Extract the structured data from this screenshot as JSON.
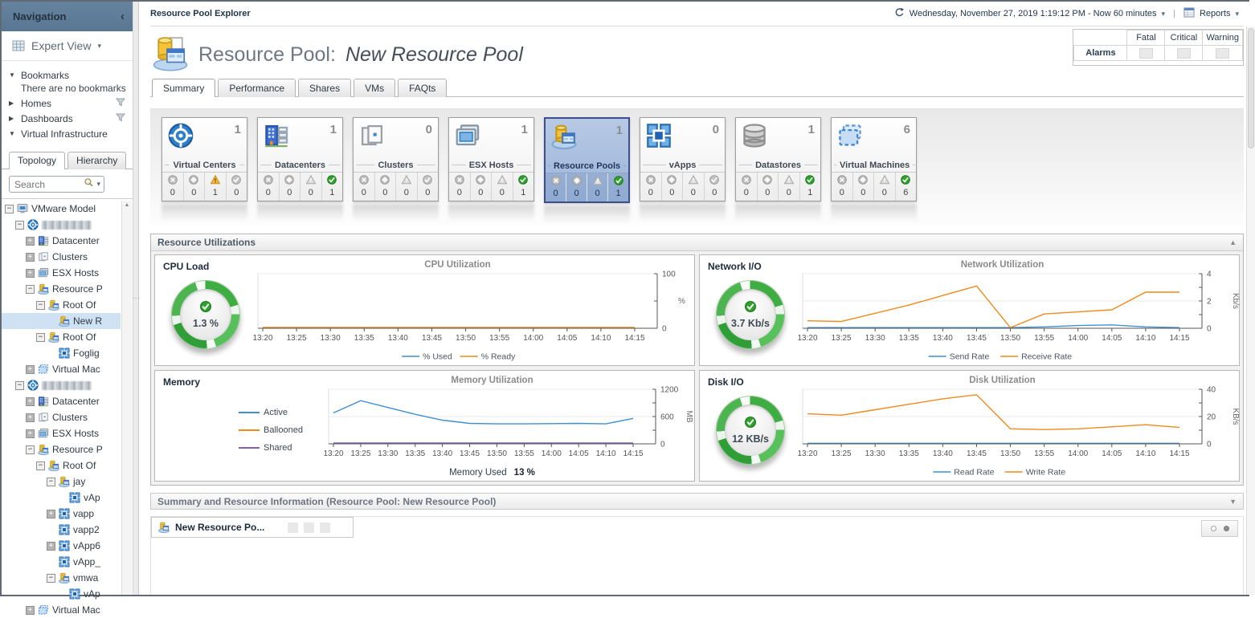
{
  "sidebar": {
    "title": "Navigation",
    "view_label": "Expert View",
    "bookmarks_label": "Bookmarks",
    "bookmarks_empty": "There are no bookmarks",
    "homes_label": "Homes",
    "dashboards_label": "Dashboards",
    "vi_label": "Virtual Infrastructure",
    "tree_tabs": [
      "Topology",
      "Hierarchy"
    ],
    "search_placeholder": "Search",
    "tree": [
      {
        "label": "VMware Model",
        "level": 0,
        "icon": "model",
        "exp": "minus"
      },
      {
        "label": "",
        "redacted": true,
        "level": 1,
        "icon": "vcenter",
        "exp": "minus"
      },
      {
        "label": "Datacenter",
        "level": 2,
        "icon": "datacenter",
        "exp": "plus"
      },
      {
        "label": "Clusters",
        "level": 2,
        "icon": "cluster",
        "exp": "plus"
      },
      {
        "label": "ESX Hosts",
        "level": 2,
        "icon": "host",
        "exp": "plus"
      },
      {
        "label": "Resource P",
        "level": 2,
        "icon": "rpool",
        "exp": "minus"
      },
      {
        "label": "Root Of",
        "level": 3,
        "icon": "rpool",
        "exp": "minus"
      },
      {
        "label": "New R",
        "level": 4,
        "icon": "rpool",
        "selected": true
      },
      {
        "label": "Root Of",
        "level": 3,
        "icon": "rpool",
        "exp": "minus"
      },
      {
        "label": "Foglig",
        "level": 4,
        "icon": "vapp"
      },
      {
        "label": "Virtual Mac",
        "level": 2,
        "icon": "vm",
        "exp": "plus"
      },
      {
        "label": "",
        "redacted": true,
        "level": 1,
        "icon": "vcenter",
        "exp": "minus"
      },
      {
        "label": "Datacenter",
        "level": 2,
        "icon": "datacenter",
        "exp": "plus"
      },
      {
        "label": "Clusters",
        "level": 2,
        "icon": "cluster",
        "exp": "plus"
      },
      {
        "label": "ESX Hosts",
        "level": 2,
        "icon": "host",
        "exp": "plus"
      },
      {
        "label": "Resource P",
        "level": 2,
        "icon": "rpool",
        "exp": "minus"
      },
      {
        "label": "Root Of",
        "level": 3,
        "icon": "rpool",
        "exp": "minus"
      },
      {
        "label": "jay",
        "level": 4,
        "icon": "rpool",
        "exp": "minus"
      },
      {
        "label": "vAp",
        "level": 5,
        "icon": "vapp"
      },
      {
        "label": "vapp",
        "level": 4,
        "icon": "vapp",
        "exp": "plus"
      },
      {
        "label": "vapp2",
        "level": 4,
        "icon": "vapp"
      },
      {
        "label": "vApp6",
        "level": 4,
        "icon": "vapp",
        "exp": "plus"
      },
      {
        "label": "vApp_",
        "level": 4,
        "icon": "vapp"
      },
      {
        "label": "vmwa",
        "level": 4,
        "icon": "rpool",
        "exp": "minus"
      },
      {
        "label": "vAp",
        "level": 5,
        "icon": "vapp"
      },
      {
        "label": "Virtual Mac",
        "level": 2,
        "icon": "vm",
        "exp": "plus"
      }
    ]
  },
  "topbar": {
    "explorer_label": "Resource Pool Explorer",
    "time_label": "Wednesday, November 27, 2019 1:19:12 PM - Now 60 minutes",
    "reports_label": "Reports"
  },
  "alarms": {
    "title": "Alarms",
    "columns": [
      "Fatal",
      "Critical",
      "Warning"
    ]
  },
  "header": {
    "title_prefix": "Resource Pool:",
    "title_name": "New Resource Pool"
  },
  "tabs": {
    "items": [
      "Summary",
      "Performance",
      "Shares",
      "VMs",
      "FAQts"
    ]
  },
  "tiles": [
    {
      "label": "Virtual Centers",
      "count": "1",
      "icon": "vcenter",
      "statuses": [
        {
          "k": "fatal",
          "n": "0",
          "on": false
        },
        {
          "k": "critical",
          "n": "0",
          "on": false
        },
        {
          "k": "warning",
          "n": "1",
          "on": true
        },
        {
          "k": "normal",
          "n": "0",
          "on": false
        }
      ]
    },
    {
      "label": "Datacenters",
      "count": "1",
      "icon": "datacenter",
      "statuses": [
        {
          "k": "fatal",
          "n": "0",
          "on": false
        },
        {
          "k": "critical",
          "n": "0",
          "on": false
        },
        {
          "k": "warning",
          "n": "0",
          "on": false
        },
        {
          "k": "normal",
          "n": "1",
          "on": true
        }
      ]
    },
    {
      "label": "Clusters",
      "count": "0",
      "icon": "cluster",
      "statuses": [
        {
          "k": "fatal",
          "n": "0",
          "on": false
        },
        {
          "k": "critical",
          "n": "0",
          "on": false
        },
        {
          "k": "warning",
          "n": "0",
          "on": false
        },
        {
          "k": "normal",
          "n": "0",
          "on": false
        }
      ]
    },
    {
      "label": "ESX Hosts",
      "count": "1",
      "icon": "host",
      "statuses": [
        {
          "k": "fatal",
          "n": "0",
          "on": false
        },
        {
          "k": "critical",
          "n": "0",
          "on": false
        },
        {
          "k": "warning",
          "n": "0",
          "on": false
        },
        {
          "k": "normal",
          "n": "1",
          "on": true
        }
      ]
    },
    {
      "label": "Resource Pools",
      "count": "1",
      "icon": "rpool",
      "selected": true,
      "statuses": [
        {
          "k": "fatal",
          "n": "0",
          "on": false
        },
        {
          "k": "critical",
          "n": "0",
          "on": false
        },
        {
          "k": "warning",
          "n": "0",
          "on": false
        },
        {
          "k": "normal",
          "n": "1",
          "on": true
        }
      ]
    },
    {
      "label": "vApps",
      "count": "0",
      "icon": "vapp",
      "statuses": [
        {
          "k": "fatal",
          "n": "0",
          "on": false
        },
        {
          "k": "critical",
          "n": "0",
          "on": false
        },
        {
          "k": "warning",
          "n": "0",
          "on": false
        },
        {
          "k": "normal",
          "n": "0",
          "on": false
        }
      ]
    },
    {
      "label": "Datastores",
      "count": "1",
      "icon": "datastore",
      "statuses": [
        {
          "k": "fatal",
          "n": "0",
          "on": false
        },
        {
          "k": "critical",
          "n": "0",
          "on": false
        },
        {
          "k": "warning",
          "n": "0",
          "on": false
        },
        {
          "k": "normal",
          "n": "1",
          "on": true
        }
      ]
    },
    {
      "label": "Virtual Machines",
      "count": "6",
      "icon": "vm",
      "statuses": [
        {
          "k": "fatal",
          "n": "0",
          "on": false
        },
        {
          "k": "critical",
          "n": "0",
          "on": false
        },
        {
          "k": "warning",
          "n": "0",
          "on": false
        },
        {
          "k": "normal",
          "n": "6",
          "on": true
        }
      ]
    }
  ],
  "sections": {
    "resource_utilizations": "Resource Utilizations",
    "summary_info": "Summary and Resource Information (Resource Pool: New Resource Pool)"
  },
  "quadrants": {
    "cpu": {
      "label": "CPU Load",
      "gauge": "1.3 %"
    },
    "network": {
      "label": "Network I/O",
      "gauge": "3.7 Kb/s"
    },
    "memory": {
      "label": "Memory"
    },
    "disk": {
      "label": "Disk I/O",
      "gauge": "12 KB/s"
    }
  },
  "chart_data": [
    {
      "type": "line",
      "title": "CPU Utilization",
      "categories": [
        "13:20",
        "13:25",
        "13:30",
        "13:35",
        "13:40",
        "13:45",
        "13:50",
        "13:55",
        "14:00",
        "14:05",
        "14:10",
        "14:15"
      ],
      "series": [
        {
          "name": "% Used",
          "color": "#3f8fd2",
          "values": [
            0.3,
            0.3,
            0.3,
            0.3,
            0.3,
            0.3,
            0.3,
            0.3,
            0.3,
            0.3,
            0.3,
            0.3
          ]
        },
        {
          "name": "% Ready",
          "color": "#ef8a1c",
          "values": [
            1.5,
            1.5,
            1.5,
            1.5,
            1.5,
            1.5,
            1.5,
            1.5,
            1.5,
            1.5,
            1.5,
            1.5
          ]
        }
      ],
      "ylim": [
        0,
        100
      ],
      "yticks": [
        {
          "v": 0,
          "label": "0"
        },
        {
          "v": 50,
          "label": ""
        },
        {
          "v": 100,
          "label": "100"
        }
      ],
      "unit": "%",
      "unit_rotate": false,
      "legend": "bottom"
    },
    {
      "type": "line",
      "title": "Network Utilization",
      "categories": [
        "13:20",
        "13:25",
        "13:30",
        "13:35",
        "13:40",
        "13:45",
        "13:50",
        "13:55",
        "14:00",
        "14:05",
        "14:10",
        "14:15"
      ],
      "series": [
        {
          "name": "Send Rate",
          "color": "#3f8fd2",
          "values": [
            0.05,
            0.05,
            0.05,
            0.05,
            0.05,
            0.05,
            0.05,
            0.1,
            0.2,
            0.25,
            0.1,
            0.05
          ]
        },
        {
          "name": "Receive Rate",
          "color": "#ef8a1c",
          "values": [
            0.55,
            0.5,
            1.1,
            1.7,
            2.4,
            3.1,
            0.05,
            1.05,
            1.2,
            1.35,
            2.65,
            2.65
          ]
        }
      ],
      "ylim": [
        0,
        4
      ],
      "yticks": [
        {
          "v": 0,
          "label": "0"
        },
        {
          "v": 1,
          "label": ""
        },
        {
          "v": 2,
          "label": "2"
        },
        {
          "v": 3,
          "label": ""
        },
        {
          "v": 4,
          "label": "4"
        }
      ],
      "unit": "Kb/s",
      "unit_rotate": true,
      "legend": "bottom"
    },
    {
      "type": "line",
      "title": "Memory Utilization",
      "categories": [
        "13:20",
        "13:25",
        "13:30",
        "13:35",
        "13:40",
        "13:45",
        "13:50",
        "13:55",
        "14:00",
        "14:05",
        "14:10",
        "14:15"
      ],
      "series": [
        {
          "name": "Active",
          "color": "#3f8fd2",
          "values": [
            680,
            950,
            800,
            650,
            520,
            450,
            440,
            440,
            445,
            450,
            440,
            560
          ]
        },
        {
          "name": "Ballooned",
          "color": "#ef8a1c",
          "values": [
            8,
            8,
            8,
            8,
            8,
            8,
            8,
            8,
            8,
            8,
            8,
            8
          ]
        },
        {
          "name": "Shared",
          "color": "#8a5db5",
          "values": [
            20,
            20,
            20,
            20,
            20,
            20,
            20,
            20,
            20,
            20,
            20,
            20
          ]
        }
      ],
      "ylim": [
        0,
        1200
      ],
      "yticks": [
        {
          "v": 0,
          "label": "0"
        },
        {
          "v": 300,
          "label": ""
        },
        {
          "v": 600,
          "label": "600"
        },
        {
          "v": 900,
          "label": ""
        },
        {
          "v": 1200,
          "label": "1200"
        }
      ],
      "unit": "MB",
      "unit_rotate": true,
      "legend": "left",
      "footer": {
        "label": "Memory Used",
        "value": "13 %"
      }
    },
    {
      "type": "line",
      "title": "Disk Utilization",
      "categories": [
        "13:20",
        "13:25",
        "13:30",
        "13:35",
        "13:40",
        "13:45",
        "13:50",
        "13:55",
        "14:00",
        "14:05",
        "14:10",
        "14:15"
      ],
      "series": [
        {
          "name": "Read Rate",
          "color": "#3f8fd2",
          "values": [
            0.4,
            0.4,
            0.4,
            0.4,
            0.4,
            0.4,
            0.4,
            0.4,
            0.4,
            0.4,
            0.4,
            0.4
          ]
        },
        {
          "name": "Write Rate",
          "color": "#ef8a1c",
          "values": [
            22,
            21,
            25,
            29,
            33,
            36,
            11,
            10.5,
            11,
            12.5,
            14,
            12
          ]
        }
      ],
      "ylim": [
        0,
        40
      ],
      "yticks": [
        {
          "v": 0,
          "label": "0"
        },
        {
          "v": 10,
          "label": ""
        },
        {
          "v": 20,
          "label": "20"
        },
        {
          "v": 30,
          "label": ""
        },
        {
          "v": 40,
          "label": "40"
        }
      ],
      "unit": "KB/s",
      "unit_rotate": true,
      "legend": "bottom"
    }
  ],
  "bottom": {
    "tab_label": "New Resource Po..."
  }
}
